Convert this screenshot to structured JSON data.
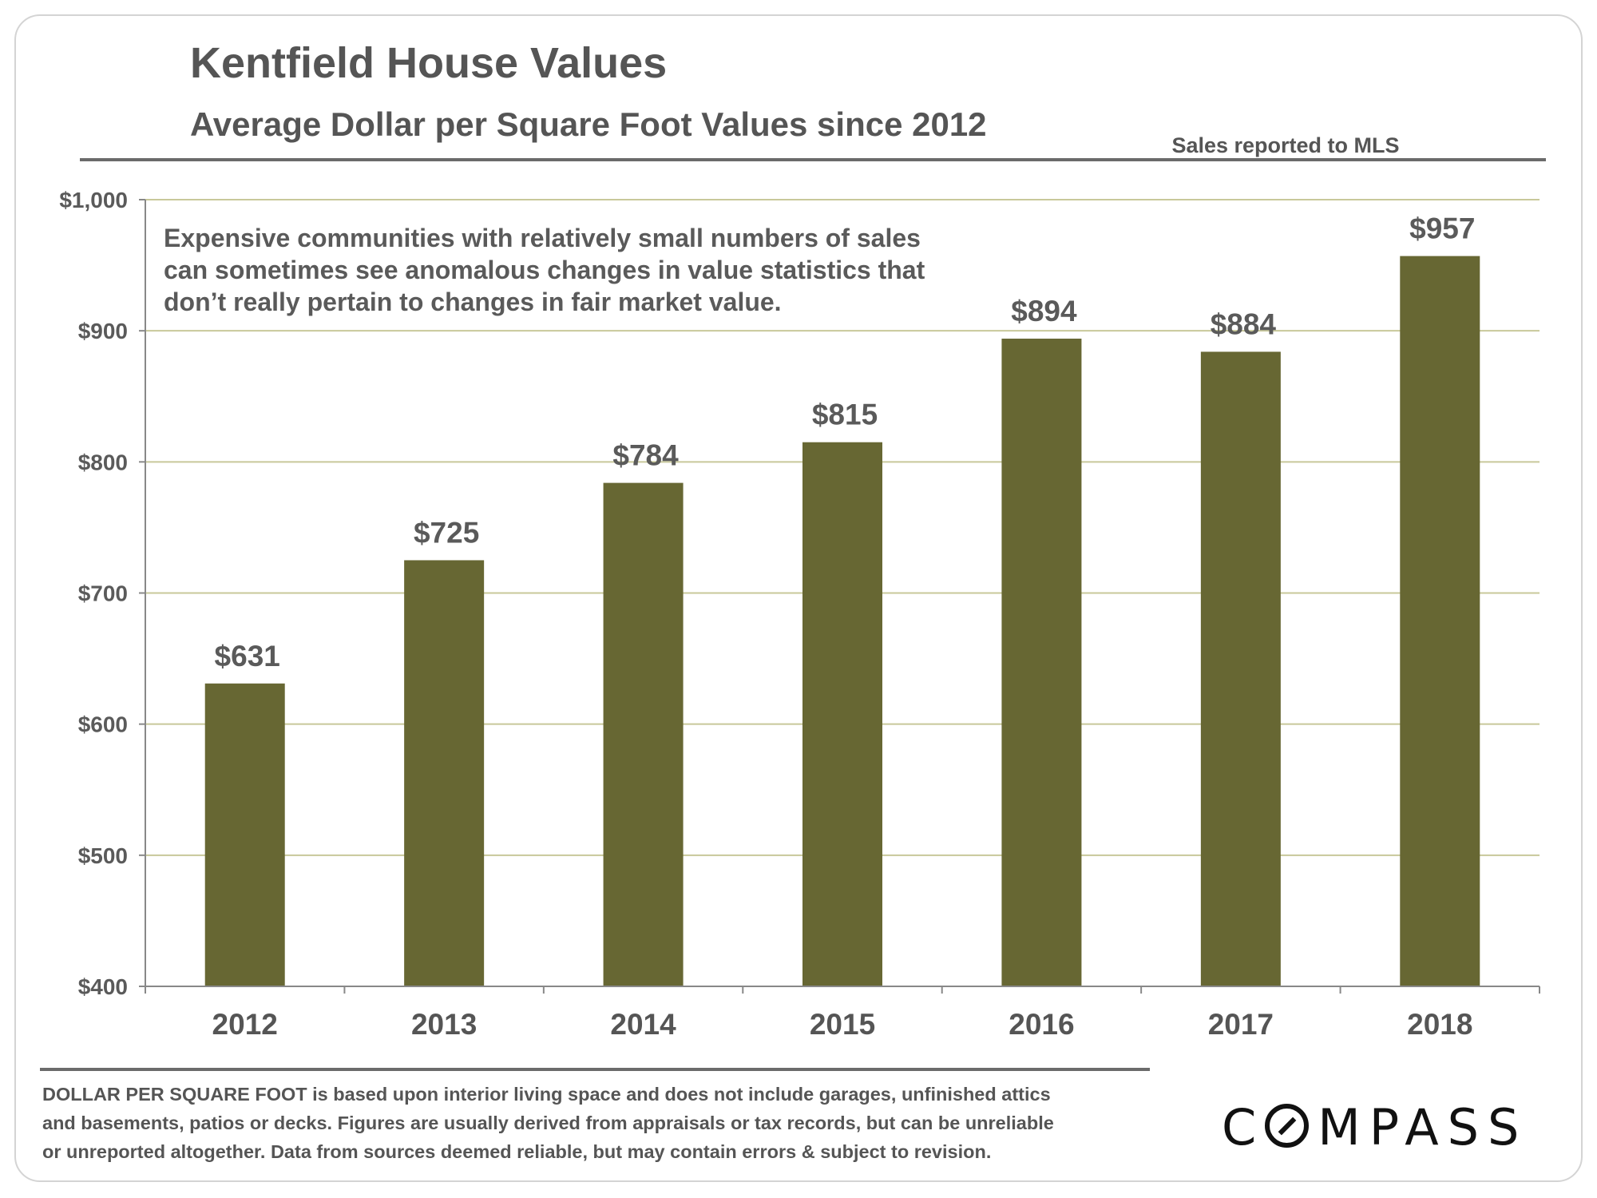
{
  "header": {
    "title": "Kentfield House Values",
    "subtitle": "Average Dollar per Square Foot Values since 2012",
    "source_note": "Sales reported to MLS"
  },
  "annotation": {
    "lines": [
      "Expensive communities with relatively small numbers of sales",
      "can sometimes see anomalous changes in value statistics that",
      "don’t really pertain to changes in fair market value."
    ]
  },
  "chart_data": {
    "type": "bar",
    "categories": [
      "2012",
      "2013",
      "2014",
      "2015",
      "2016",
      "2017",
      "2018"
    ],
    "values": [
      631,
      725,
      784,
      815,
      894,
      884,
      957
    ],
    "data_labels": [
      "$631",
      "$725",
      "$784",
      "$815",
      "$894",
      "$884",
      "$957"
    ],
    "ylim": [
      400,
      1000
    ],
    "yticks": [
      400,
      500,
      600,
      700,
      800,
      900,
      1000
    ],
    "ytick_labels": [
      "$400",
      "$500",
      "$600",
      "$700",
      "$800",
      "$900",
      "$1,000"
    ],
    "grid": true,
    "legend": "none",
    "bar_color": "#676733",
    "grid_color": "#c8c89a"
  },
  "footer": {
    "footnote_lines": [
      "DOLLAR PER SQUARE FOOT is based upon interior living space and does not include garages, unfinished attics",
      "and basements, patios or decks. Figures are usually derived from appraisals or tax records, but can be unreliable",
      "or unreported altogether. Data from sources deemed reliable, but may contain errors & subject to revision."
    ],
    "logo_text_after_c": "MPASS",
    "logo_letter_c": "C"
  }
}
